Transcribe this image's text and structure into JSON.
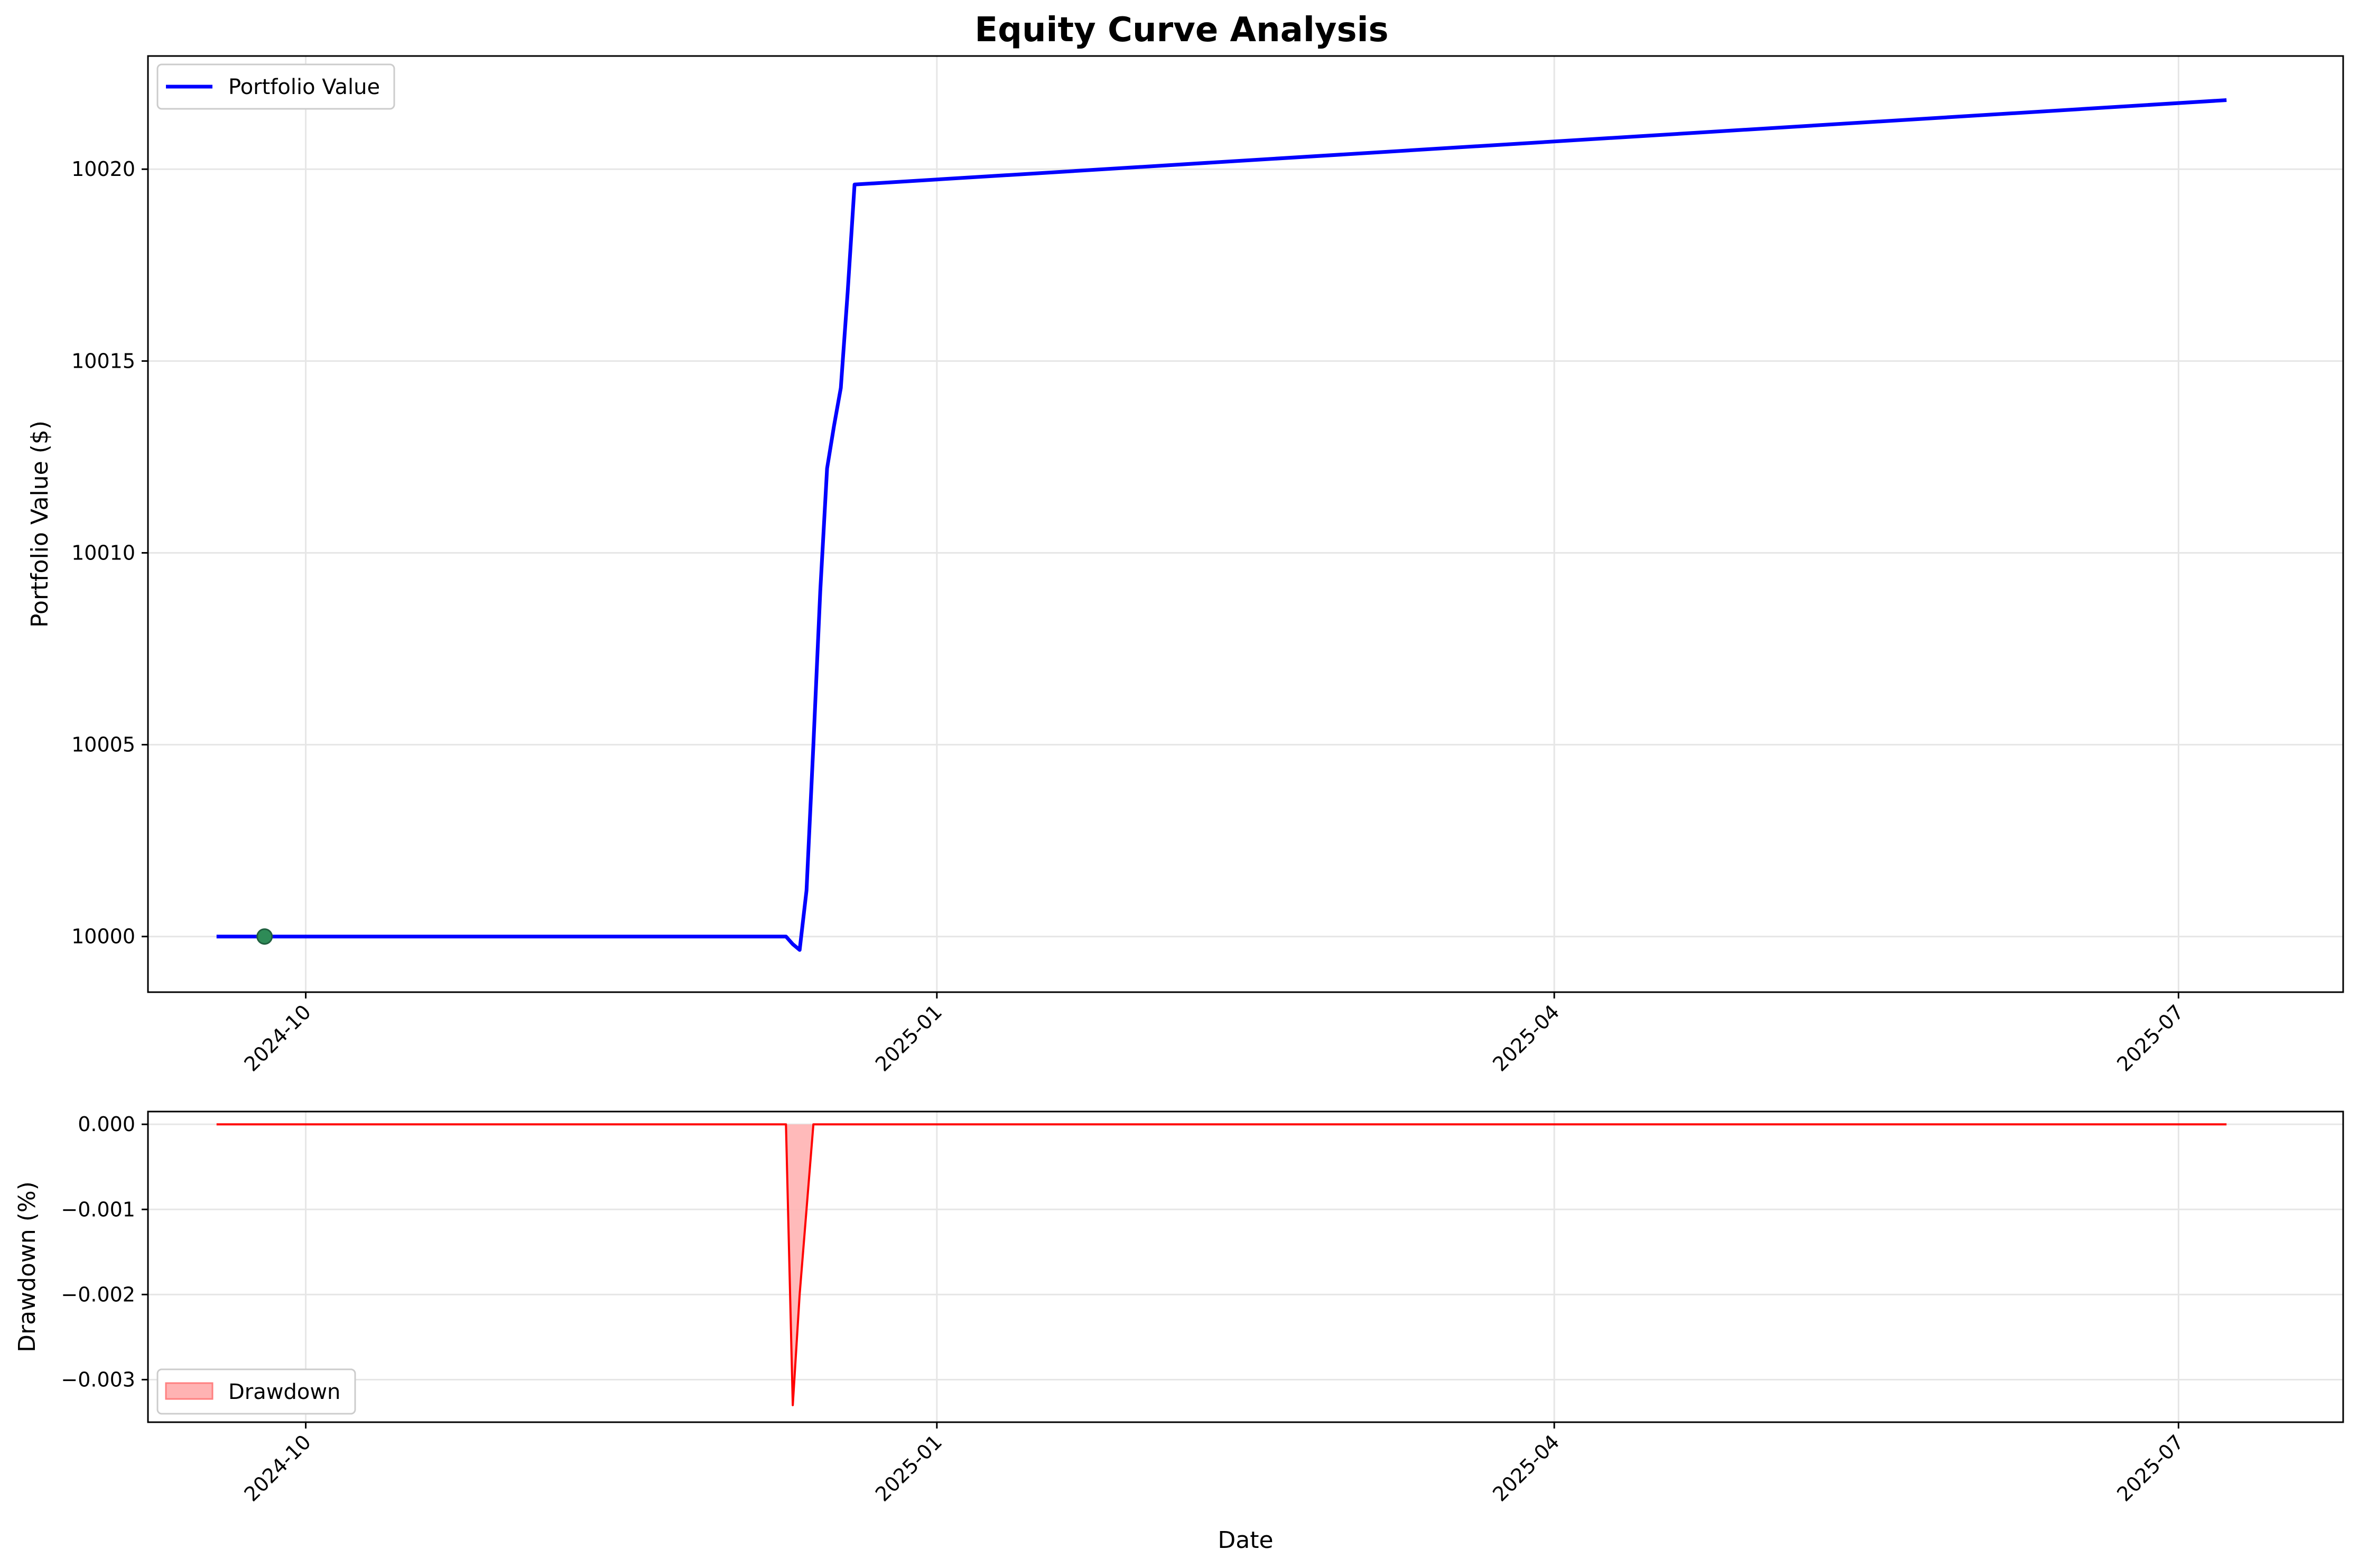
{
  "figure": {
    "title": "Equity Curve Analysis"
  },
  "chart_data": [
    {
      "type": "line",
      "title": "Equity Curve Analysis",
      "ylabel": "Portfolio Value ($)",
      "xlabel": "",
      "xlim": [
        "2024-09-08",
        "2025-07-25"
      ],
      "ylim": [
        9998.55,
        10022.95
      ],
      "x_ticks": [
        "2024-10-01",
        "2025-01-01",
        "2025-04-01",
        "2025-07-01"
      ],
      "x_tick_labels": [
        "2024-10",
        "2025-01",
        "2025-04",
        "2025-07"
      ],
      "y_ticks": [
        10000,
        10005,
        10010,
        10015,
        10020
      ],
      "y_tick_labels": [
        "10000",
        "10005",
        "10010",
        "10015",
        "10020"
      ],
      "grid": true,
      "legend": "upper-left",
      "series": [
        {
          "name": "Portfolio Value",
          "color": "#0000ff",
          "x": [
            "2024-09-18",
            "2024-12-10",
            "2024-12-11",
            "2024-12-12",
            "2024-12-13",
            "2024-12-14",
            "2024-12-15",
            "2024-12-16",
            "2024-12-17",
            "2024-12-18",
            "2024-12-19",
            "2024-12-20",
            "2025-07-08"
          ],
          "y": [
            10000,
            10000,
            9999.8,
            9999.65,
            10001.2,
            10005,
            10009,
            10012.2,
            10013.3,
            10014.3,
            10016.8,
            10019.6,
            10021.8
          ]
        }
      ],
      "markers": [
        {
          "x": "2024-09-25",
          "y": 10000,
          "color": "#2e8b57"
        }
      ]
    },
    {
      "type": "area",
      "xlabel": "Date",
      "ylabel": "Drawdown (%)",
      "xlim": [
        "2024-09-08",
        "2025-07-25"
      ],
      "ylim": [
        -0.0035,
        0.00015
      ],
      "x_ticks": [
        "2024-10-01",
        "2025-01-01",
        "2025-04-01",
        "2025-07-01"
      ],
      "x_tick_labels": [
        "2024-10",
        "2025-01",
        "2025-04",
        "2025-07"
      ],
      "y_ticks": [
        0,
        -0.001,
        -0.002,
        -0.003
      ],
      "y_tick_labels": [
        "0.000",
        "−0.001",
        "−0.002",
        "−0.003"
      ],
      "grid": true,
      "legend": "lower-left",
      "series": [
        {
          "name": "Drawdown",
          "line_color": "#ff0000",
          "fill_color": "#ffb3b3",
          "x": [
            "2024-09-18",
            "2024-12-10",
            "2024-12-11",
            "2024-12-12",
            "2024-12-13",
            "2024-12-14",
            "2025-07-08"
          ],
          "y": [
            0,
            0,
            -0.0033,
            -0.002,
            -0.001,
            0,
            0
          ]
        }
      ]
    }
  ]
}
